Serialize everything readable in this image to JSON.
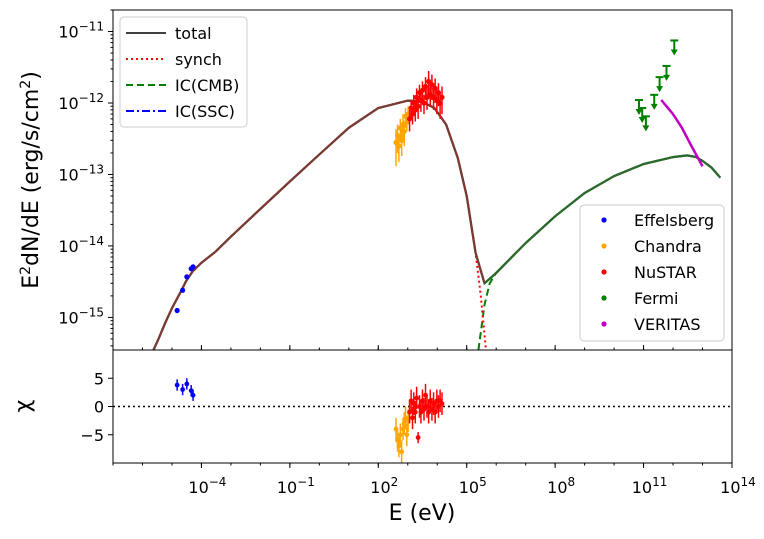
{
  "chart_data": {
    "type": "scatter",
    "xlabel": "E (eV)",
    "xscale": "log",
    "xlim": [
      1e-07,
      100000000000000.0
    ],
    "x_ticks": [
      {
        "value": 0.0001,
        "base": "10",
        "exp": "−4"
      },
      {
        "value": 0.1,
        "base": "10",
        "exp": "−1"
      },
      {
        "value": 100.0,
        "base": "10",
        "exp": "2"
      },
      {
        "value": 100000.0,
        "base": "10",
        "exp": "5"
      },
      {
        "value": 100000000.0,
        "base": "10",
        "exp": "8"
      },
      {
        "value": 100000000000.0,
        "base": "10",
        "exp": "11"
      },
      {
        "value": 100000000000000.0,
        "base": "10",
        "exp": "14"
      }
    ],
    "top_panel": {
      "ylabel": {
        "pre": "E",
        "sup1": "2",
        "mid": "dN/dE (erg/s/cm",
        "sup2": "2",
        "post": ")"
      },
      "yscale": "log",
      "ylim": [
        3.5e-16,
        2e-11
      ],
      "y_ticks": [
        {
          "value": 1e-15,
          "base": "10",
          "exp": "−15"
        },
        {
          "value": 1e-14,
          "base": "10",
          "exp": "−14"
        },
        {
          "value": 1e-13,
          "base": "10",
          "exp": "−13"
        },
        {
          "value": 1e-12,
          "base": "10",
          "exp": "−12"
        },
        {
          "value": 1e-11,
          "base": "10",
          "exp": "−11"
        }
      ],
      "model_legend": [
        {
          "name": "total",
          "color": "#404040",
          "style": "solid"
        },
        {
          "name": "synch",
          "color": "#ff0000",
          "style": "dotted"
        },
        {
          "name": "IC(CMB)",
          "color": "#008000",
          "style": "dashed"
        },
        {
          "name": "IC(SSC)",
          "color": "#0000ff",
          "style": "dashdot"
        }
      ],
      "data_legend": [
        {
          "name": "Effelsberg",
          "color": "#0000ff"
        },
        {
          "name": "Chandra",
          "color": "#ffa500"
        },
        {
          "name": "NuSTAR",
          "color": "#ff0000"
        },
        {
          "name": "Fermi",
          "color": "#008000"
        },
        {
          "name": "VERITAS",
          "color": "#c000c0"
        }
      ],
      "models": {
        "synch": [
          [
            2e-06,
            3e-16
          ],
          [
            3.5e-06,
            5e-16
          ],
          [
            6e-06,
            8.5e-16
          ],
          [
            1e-05,
            1.35e-15
          ],
          [
            2e-05,
            2.3e-15
          ],
          [
            3e-05,
            3.2e-15
          ],
          [
            5e-05,
            4.4e-15
          ],
          [
            0.0001,
            5.8e-15
          ],
          [
            0.0003,
            8.3e-15
          ],
          [
            0.001,
            1.35e-14
          ],
          [
            0.01,
            3.3e-14
          ],
          [
            0.1,
            8e-14
          ],
          [
            1,
            1.9e-13
          ],
          [
            10,
            4.5e-13
          ],
          [
            100,
            8.5e-13
          ],
          [
            1000,
            1.08e-12
          ],
          [
            3000,
            1.05e-12
          ],
          [
            8000,
            8.5e-13
          ],
          [
            20000.0,
            5e-13
          ],
          [
            50000.0,
            1.7e-13
          ],
          [
            100000.0,
            5e-14
          ],
          [
            200000.0,
            8e-15
          ],
          [
            300000.0,
            2e-15
          ],
          [
            450000.0,
            3.5e-16
          ]
        ],
        "ic_cmb": [
          [
            250000.0,
            3.5e-16
          ],
          [
            400000.0,
            1.5e-15
          ],
          [
            600000.0,
            3e-15
          ],
          [
            1000000.0,
            4.2e-15
          ],
          [
            10000000.0,
            1.1e-14
          ],
          [
            100000000.0,
            2.6e-14
          ],
          [
            1000000000.0,
            5.5e-14
          ],
          [
            10000000000.0,
            9.5e-14
          ],
          [
            100000000000.0,
            1.4e-13
          ],
          [
            1000000000000.0,
            1.75e-13
          ],
          [
            3000000000000.0,
            1.85e-13
          ],
          [
            6000000000000.0,
            1.75e-13
          ],
          [
            10000000000000.0,
            1.55e-13
          ],
          [
            20000000000000.0,
            1.25e-13
          ],
          [
            40000000000000.0,
            9e-14
          ]
        ],
        "total": [
          [
            2e-06,
            3e-16
          ],
          [
            3.5e-06,
            5e-16
          ],
          [
            6e-06,
            8.5e-16
          ],
          [
            1e-05,
            1.35e-15
          ],
          [
            2e-05,
            2.3e-15
          ],
          [
            3e-05,
            3.2e-15
          ],
          [
            5e-05,
            4.4e-15
          ],
          [
            0.0001,
            5.8e-15
          ],
          [
            0.0003,
            8.3e-15
          ],
          [
            0.001,
            1.35e-14
          ],
          [
            0.01,
            3.3e-14
          ],
          [
            0.1,
            8e-14
          ],
          [
            1,
            1.9e-13
          ],
          [
            10,
            4.5e-13
          ],
          [
            100,
            8.5e-13
          ],
          [
            1000,
            1.08e-12
          ],
          [
            3000,
            1.05e-12
          ],
          [
            8000,
            8.5e-13
          ],
          [
            20000.0,
            5e-13
          ],
          [
            50000.0,
            1.7e-13
          ],
          [
            100000.0,
            5e-14
          ],
          [
            200000.0,
            8e-15
          ],
          [
            400000.0,
            3e-15
          ],
          [
            1000000.0,
            4.2e-15
          ],
          [
            10000000.0,
            1.1e-14
          ],
          [
            100000000.0,
            2.6e-14
          ],
          [
            1000000000.0,
            5.5e-14
          ],
          [
            10000000000.0,
            9.5e-14
          ],
          [
            100000000000.0,
            1.4e-13
          ],
          [
            1000000000000.0,
            1.75e-13
          ],
          [
            3000000000000.0,
            1.85e-13
          ],
          [
            6000000000000.0,
            1.75e-13
          ],
          [
            10000000000000.0,
            1.55e-13
          ],
          [
            20000000000000.0,
            1.25e-13
          ],
          [
            40000000000000.0,
            9e-14
          ]
        ]
      },
      "effelsberg": [
        [
          1.5e-05,
          1.25e-15,
          1e-16
        ],
        [
          2.3e-05,
          2.4e-15,
          1.5e-16
        ],
        [
          3.2e-05,
          3.7e-15,
          2e-16
        ],
        [
          4.5e-05,
          4.8e-15,
          3e-16
        ],
        [
          5.2e-05,
          5.1e-15,
          3e-16
        ]
      ],
      "chandra": [
        [
          400,
          2.8e-13,
          1.5e-13
        ],
        [
          450,
          3.5e-13,
          1.5e-13
        ],
        [
          500,
          2.5e-13,
          1e-13
        ],
        [
          560,
          4.5e-13,
          1.5e-13
        ],
        [
          620,
          3e-13,
          1.2e-13
        ],
        [
          690,
          5e-13,
          2e-13
        ],
        [
          760,
          4e-13,
          1.5e-13
        ],
        [
          840,
          6.5e-13,
          2e-13
        ],
        [
          930,
          5.5e-13,
          1.5e-13
        ],
        [
          1030,
          7e-13,
          2e-13
        ]
      ],
      "nustar": [
        [
          1150,
          6e-13,
          2e-13
        ],
        [
          1300,
          8.5e-13,
          2.5e-13
        ],
        [
          1450,
          7e-13,
          2e-13
        ],
        [
          1600,
          1e-12,
          3e-13
        ],
        [
          1800,
          8e-13,
          2.5e-13
        ],
        [
          2000,
          1.2e-12,
          4e-13
        ],
        [
          2250,
          9e-13,
          3e-13
        ],
        [
          2500,
          1.4e-12,
          4e-13
        ],
        [
          2800,
          1.1e-12,
          3.5e-13
        ],
        [
          3150,
          1.5e-12,
          5e-13
        ],
        [
          3550,
          1e-12,
          3e-13
        ],
        [
          4000,
          1.7e-12,
          6e-13
        ],
        [
          4500,
          1.2e-12,
          4e-13
        ],
        [
          5100,
          2e-12,
          8e-13
        ],
        [
          5800,
          1.3e-12,
          4e-13
        ],
        [
          6600,
          1.8e-12,
          7e-13
        ],
        [
          7500,
          1.2e-12,
          4e-13
        ],
        [
          8500,
          1.6e-12,
          6e-13
        ],
        [
          9700,
          1.1e-12,
          4e-13
        ],
        [
          11000,
          1.4e-12,
          5e-13
        ],
        [
          12500,
          1e-12,
          4e-13
        ],
        [
          14500,
          1.2e-12,
          5e-13
        ]
      ],
      "fermi_upper_limits": [
        [
          70000000000.0,
          1.1e-12
        ],
        [
          90000000000.0,
          8.5e-13
        ],
        [
          120000000000.0,
          6.5e-13
        ],
        [
          230000000000.0,
          1.3e-12
        ],
        [
          350000000000.0,
          2.3e-12
        ],
        [
          600000000000.0,
          3.3e-12
        ],
        [
          1100000000000.0,
          7.5e-12
        ]
      ],
      "veritas_butterfly": [
        [
          400000000000.0,
          1.1e-12
        ],
        [
          600000000000.0,
          9e-13
        ],
        [
          1000000000000.0,
          7e-13
        ],
        [
          2000000000000.0,
          4.5e-13
        ],
        [
          4000000000000.0,
          2.6e-13
        ],
        [
          7000000000000.0,
          1.7e-13
        ],
        [
          10000000000000.0,
          1.3e-13
        ]
      ]
    },
    "bottom_panel": {
      "ylabel": "χ",
      "ylim": [
        -10,
        10
      ],
      "y_ticks": [
        {
          "value": 5,
          "label": "5"
        },
        {
          "value": 0,
          "label": "0"
        },
        {
          "value": -5,
          "label": "−5"
        }
      ],
      "zero_line": "dotted",
      "effelsberg": [
        [
          1.5e-05,
          3.8,
          1
        ],
        [
          2.3e-05,
          3,
          1
        ],
        [
          3.2e-05,
          4,
          1
        ],
        [
          4.5e-05,
          2.8,
          1
        ],
        [
          5.2e-05,
          2,
          1
        ]
      ],
      "chandra": [
        [
          400,
          -4,
          2
        ],
        [
          450,
          -6,
          2
        ],
        [
          500,
          -7,
          2
        ],
        [
          560,
          -5,
          2
        ],
        [
          620,
          -8,
          2
        ],
        [
          690,
          -4,
          2
        ],
        [
          760,
          -3,
          2
        ],
        [
          840,
          -2,
          2
        ],
        [
          930,
          -5,
          2
        ],
        [
          1030,
          -2.5,
          2
        ]
      ],
      "nustar": [
        [
          1150,
          -1,
          2
        ],
        [
          1300,
          1,
          2
        ],
        [
          1450,
          -2,
          2
        ],
        [
          1600,
          0.5,
          2
        ],
        [
          1800,
          -1,
          2
        ],
        [
          2000,
          1.5,
          2
        ],
        [
          2250,
          -5.5,
          1
        ],
        [
          2500,
          0,
          2
        ],
        [
          2800,
          -1,
          2
        ],
        [
          3150,
          1,
          2
        ],
        [
          3550,
          -0.5,
          2
        ],
        [
          4000,
          2,
          2
        ],
        [
          4500,
          0,
          2
        ],
        [
          5100,
          -1,
          2
        ],
        [
          5800,
          1,
          2
        ],
        [
          6600,
          -0.5,
          2
        ],
        [
          7500,
          0.5,
          2
        ],
        [
          8500,
          -1,
          2
        ],
        [
          9700,
          1,
          2
        ],
        [
          11000,
          0,
          2
        ],
        [
          12500,
          1,
          2
        ],
        [
          14500,
          0.5,
          2
        ]
      ]
    }
  }
}
